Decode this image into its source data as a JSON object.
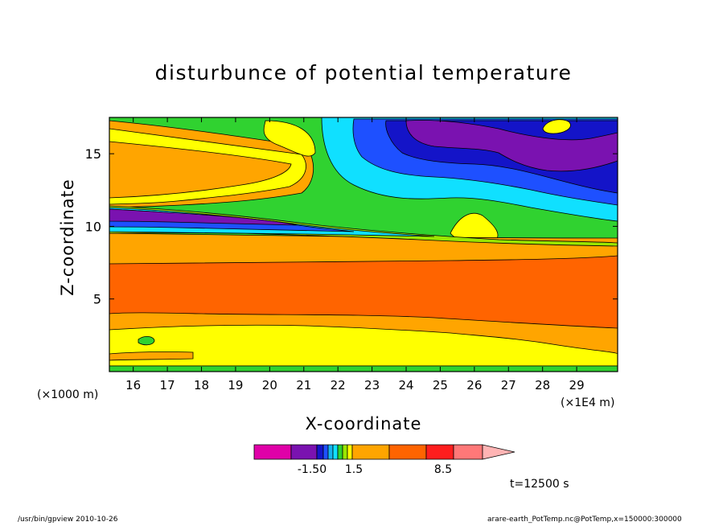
{
  "chart_data": {
    "type": "heatmap",
    "title": "disturbunce of potential temperature",
    "xlabel": "X-coordinate",
    "ylabel": "Z-coordinate",
    "x_unit_left": "(×1000 m)",
    "x_unit_right": "(×1E4 m)",
    "xlim": [
      15.3,
      30.2
    ],
    "ylim": [
      0,
      17.5
    ],
    "xticks": [
      "16",
      "17",
      "18",
      "19",
      "20",
      "21",
      "22",
      "23",
      "24",
      "25",
      "26",
      "27",
      "28",
      "29"
    ],
    "xtick_values": [
      16,
      17,
      18,
      19,
      20,
      21,
      22,
      23,
      24,
      25,
      26,
      27,
      28,
      29
    ],
    "yticks": [
      "5",
      "10",
      "15"
    ],
    "ytick_values": [
      5,
      10,
      15
    ],
    "colorbar": {
      "labels": [
        "-1.50",
        "1.5",
        "8.5"
      ],
      "colors": [
        "#e000a8",
        "#7a12b0",
        "#1414c8",
        "#1e50ff",
        "#14b4f0",
        "#10e0ff",
        "#30d230",
        "#9ae600",
        "#ffff00",
        "#ffa500",
        "#ff6400",
        "#ff1e1e",
        "#ff7878",
        "#ffb4b4"
      ]
    },
    "regions": [
      {
        "name": "top-green-band",
        "color": "#30d230",
        "x": [
          15.3,
          30.2
        ],
        "y": [
          16.5,
          17.5
        ]
      },
      {
        "name": "upper-orange",
        "color": "#ffa500",
        "x": [
          15.3,
          21.5
        ],
        "y": [
          11.8,
          16.2
        ]
      },
      {
        "name": "upper-yellow",
        "color": "#ffff00",
        "x": [
          17.5,
          21.8
        ],
        "y": [
          12,
          17
        ]
      },
      {
        "name": "upper-green",
        "color": "#30d230",
        "x": [
          21,
          26
        ],
        "y": [
          9.5,
          17.5
        ]
      },
      {
        "name": "cyan-tongue",
        "color": "#10e0ff",
        "x": [
          22,
          30.2
        ],
        "y": [
          10.5,
          17
        ]
      },
      {
        "name": "blue-core",
        "color": "#1e50ff",
        "x": [
          23.5,
          30.2
        ],
        "y": [
          12.8,
          17
        ]
      },
      {
        "name": "purple-core",
        "color": "#7a12b0",
        "x": [
          25,
          29.5
        ],
        "y": [
          13.8,
          17
        ]
      },
      {
        "name": "purple-band",
        "color": "#7a12b0",
        "x": [
          15.3,
          21.5
        ],
        "y": [
          10.2,
          11.5
        ]
      },
      {
        "name": "lower-orange",
        "color": "#ffa500",
        "x": [
          15.3,
          30.2
        ],
        "y": [
          1,
          9.5
        ]
      },
      {
        "name": "dark-orange-core",
        "color": "#ff6400",
        "x": [
          15.3,
          30.2
        ],
        "y": [
          4,
          8.5
        ]
      },
      {
        "name": "surface-yellow",
        "color": "#ffff00",
        "x": [
          15.3,
          26
        ],
        "y": [
          0.3,
          3
        ]
      },
      {
        "name": "bottom-green",
        "color": "#30d230",
        "x": [
          15.3,
          30.2
        ],
        "y": [
          0,
          0.4
        ]
      }
    ],
    "time_label": "t=12500 s",
    "grid": false,
    "legend": "colorbar-bottom"
  },
  "footer": {
    "left": "/usr/bin/gpview   2010-10-26",
    "right": "arare-earth_PotTemp.nc@PotTemp,x=150000:300000"
  }
}
